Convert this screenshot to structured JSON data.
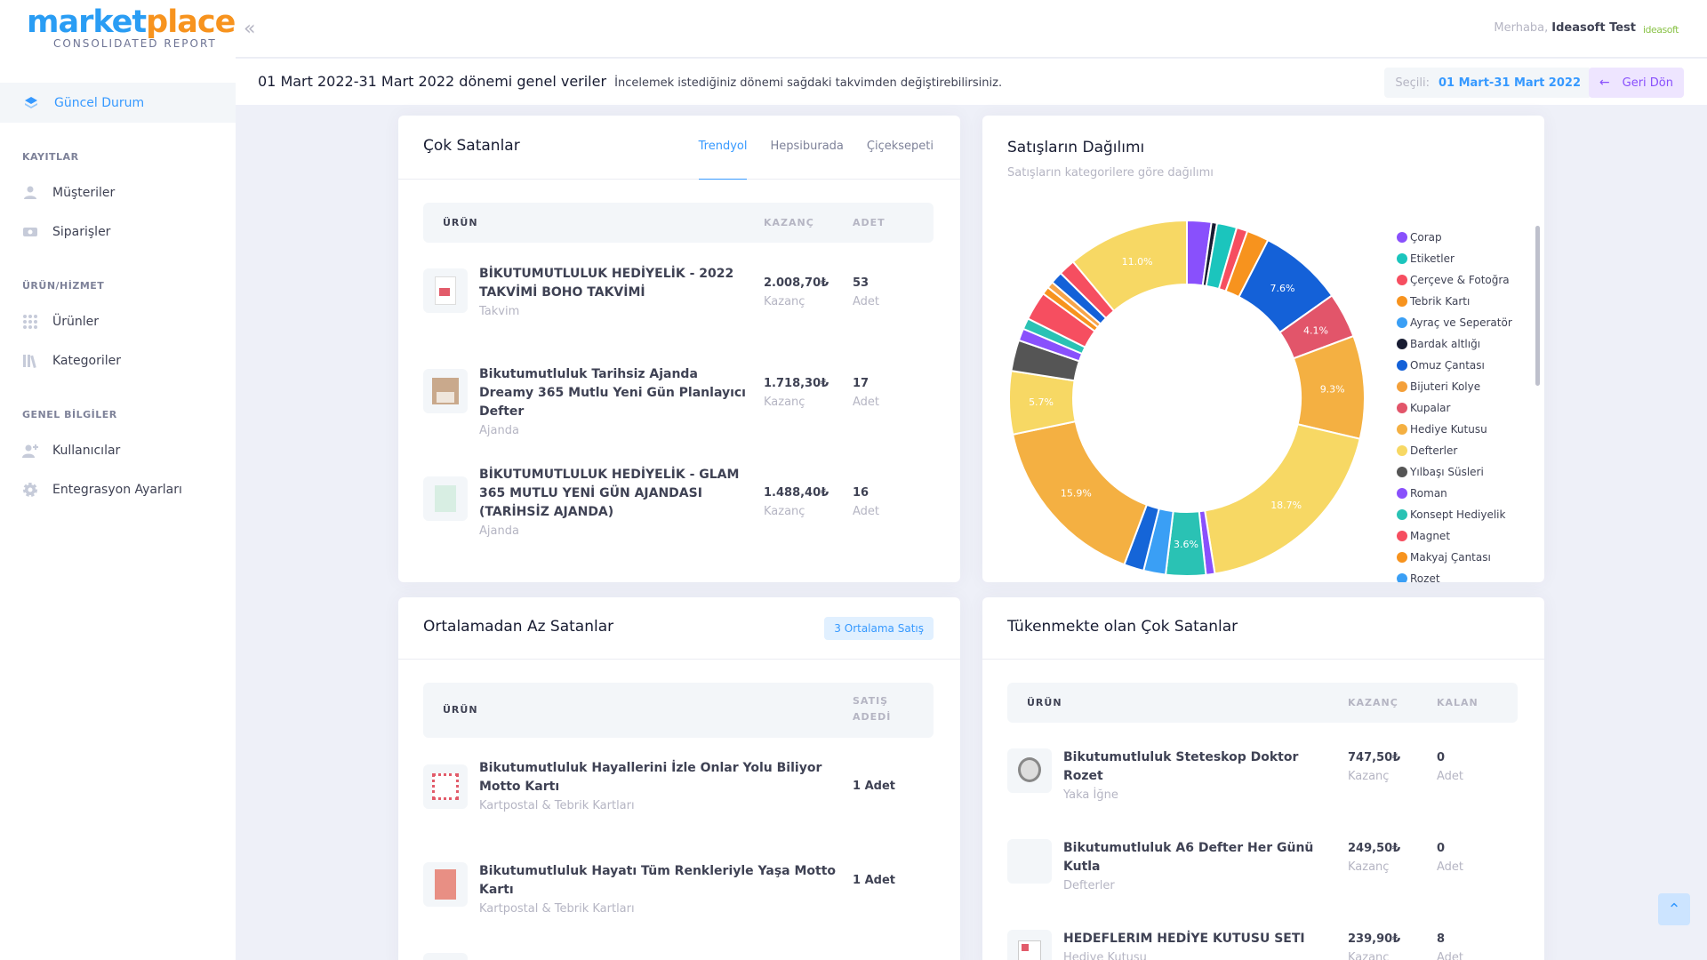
{
  "brand": {
    "part1": "market",
    "part2": "place",
    "subtitle": "CONSOLIDATED REPORT"
  },
  "sidebar": {
    "active": {
      "label": "Güncel Durum"
    },
    "sections": [
      {
        "title": "KAYITLAR",
        "items": [
          {
            "label": "Müşteriler",
            "icon": "user-icon"
          },
          {
            "label": "Siparişler",
            "icon": "money-icon"
          }
        ]
      },
      {
        "title": "ÜRÜN/HİZMET",
        "items": [
          {
            "label": "Ürünler",
            "icon": "grid-icon"
          },
          {
            "label": "Kategoriler",
            "icon": "library-icon"
          }
        ]
      },
      {
        "title": "GENEL BİLGİLER",
        "items": [
          {
            "label": "Kullanıcılar",
            "icon": "add-user-icon"
          },
          {
            "label": "Entegrasyon Ayarları",
            "icon": "gear-icon"
          }
        ]
      }
    ]
  },
  "topbar": {
    "greeting_prefix": "Merhaba,",
    "user_name": "Ideasoft Test",
    "logo_text": "ideasoft"
  },
  "subheader": {
    "title": "01 Mart 2022-31 Mart 2022 dönemi genel veriler",
    "description": "İncelemek istediğiniz dönemi sağdaki takvimden değiştirebilirsiniz.",
    "selected_label": "Seçili:",
    "selected_value": "01 Mart-31 Mart 2022",
    "back_label": "Geri Dön"
  },
  "best_sellers": {
    "title": "Çok Satanlar",
    "tabs": [
      "Trendyol",
      "Hepsiburada",
      "Çiçeksepeti"
    ],
    "active_tab": "Trendyol",
    "columns": [
      "ÜRÜN",
      "KAZANÇ",
      "ADET"
    ],
    "rows": [
      {
        "name": "BİKUTUMUTLULUK HEDİYELİK - 2022 TAKVİMİ BOHO TAKVİMİ",
        "category": "Takvim",
        "earning": "2.008,70₺",
        "earning_label": "Kazanç",
        "qty": "53",
        "qty_label": "Adet"
      },
      {
        "name": "Bikutumutluluk Tarihsiz Ajanda Dreamy 365 Mutlu Yeni Gün Planlayıcı Defter",
        "category": "Ajanda",
        "earning": "1.718,30₺",
        "earning_label": "Kazanç",
        "qty": "17",
        "qty_label": "Adet"
      },
      {
        "name": "BİKUTUMUTLULUK HEDİYELİK - GLAM 365 MUTLU YENİ GÜN AJANDASI (TARİHSİZ AJANDA)",
        "category": "Ajanda",
        "earning": "1.488,40₺",
        "earning_label": "Kazanç",
        "qty": "16",
        "qty_label": "Adet"
      }
    ]
  },
  "distribution": {
    "title": "Satışların Dağılımı",
    "subtitle": "Satışların kategorilere göre dağılımı"
  },
  "chart_data": {
    "type": "pie",
    "donut": true,
    "legend": "right",
    "categories": [
      "Çorap",
      "Etiketler",
      "Çerçeve & Fotoğra",
      "Tebrik Kartı",
      "Ayraç ve Seperatör",
      "Bardak altlığı",
      "Omuz Çantası",
      "Bijuteri Kolye",
      "Kupalar",
      "Hediye Kutusu",
      "Defterler",
      "Yılbaşı Süsleri",
      "Roman",
      "Konsept Hediyelik",
      "Magnet",
      "Makyaj Çantası",
      "Rozet"
    ],
    "slice_order": [
      "Çorap",
      "Bardak altlığı",
      "Etiketler",
      "Çerçeve & Fotoğra",
      "Tebrik Kartı",
      "Omuz Çantası",
      "Kupalar",
      "Hediye Kutusu",
      "Defterler",
      "Roman",
      "Konsept Hediyelik",
      "Ayraç ve Seperatör",
      "Omuz Çantası ",
      "Hediye Kutusu ",
      "Defterler ",
      "Yılbaşı Süsleri",
      "Roman ",
      "Konsept Hediyelik ",
      "Magnet",
      "Makyaj Çantası",
      "Rozet",
      "Omuz Çantası  ",
      "Çorap ",
      "Defterler  "
    ],
    "values": [
      2.2,
      0.5,
      1.8,
      1.0,
      2.0,
      7.6,
      4.1,
      9.3,
      18.7,
      0.8,
      3.6,
      2.0,
      1.8,
      15.9,
      5.7,
      2.8,
      1.1,
      1.0,
      2.6,
      0.7,
      0.6,
      1.1,
      1.5,
      11.0
    ],
    "slice_colors": [
      "#8950fc",
      "#181c32",
      "#1bc5bd",
      "#f64e60",
      "#f7931e",
      "#1461d8",
      "#e2556a",
      "#f4b042",
      "#f7d864",
      "#8950fc",
      "#2ac2b4",
      "#3a9ff5",
      "#1565d8",
      "#f4b042",
      "#f7d864",
      "#555555",
      "#8950fc",
      "#2ac2b4",
      "#f64e60",
      "#f7931e",
      "#f7a54a",
      "#1461d8",
      "#f64e60",
      "#f7d864"
    ],
    "labels": [
      "",
      "",
      "",
      "",
      "",
      "7.6%",
      "4.1%",
      "9.3%",
      "18.7%",
      "",
      "3.6%",
      "",
      "",
      "15.9%",
      "5.7%",
      "",
      "",
      "",
      "",
      "",
      "",
      "",
      "",
      "11.0%"
    ],
    "legend_colors": [
      "#8950fc",
      "#1bc5bd",
      "#f64e60",
      "#f7931e",
      "#3a9ff5",
      "#181c32",
      "#1461d8",
      "#f4a03a",
      "#e2556a",
      "#f4b042",
      "#f7d864",
      "#555555",
      "#8950fc",
      "#2ac2b4",
      "#f64e60",
      "#f7931e",
      "#3a9ff5"
    ]
  },
  "below_avg": {
    "title": "Ortalamadan Az Satanlar",
    "badge": "3 Ortalama Satış",
    "columns": [
      "ÜRÜN",
      "SATIŞ",
      "ADEDİ"
    ],
    "rows": [
      {
        "name": "Bikutumutluluk Hayallerini İzle Onlar Yolu Biliyor Motto Kartı",
        "category": "Kartpostal & Tebrik Kartları",
        "qty": "1 Adet"
      },
      {
        "name": "Bikutumutluluk Hayatı Tüm Renkleriyle Yaşa Motto Kartı",
        "category": "Kartpostal & Tebrik Kartları",
        "qty": "1 Adet"
      }
    ]
  },
  "running_out": {
    "title": "Tükenmekte olan Çok Satanlar",
    "columns": [
      "ÜRÜN",
      "KAZANÇ",
      "KALAN"
    ],
    "rows": [
      {
        "name": "Bikutumutluluk Steteskop Doktor Rozet",
        "category": "Yaka İğne",
        "earning": "747,50₺",
        "earning_label": "Kazanç",
        "left": "0",
        "left_label": "Adet"
      },
      {
        "name": "Bikutumutluluk A6 Defter Her Günü Kutla",
        "category": "Defterler",
        "earning": "249,50₺",
        "earning_label": "Kazanç",
        "left": "0",
        "left_label": "Adet"
      },
      {
        "name": "HEDEFLERIM HEDİYE KUTUSU SETI",
        "category": "Hediye Kutusu",
        "earning": "239,90₺",
        "earning_label": "Kazanç",
        "left": "8",
        "left_label": "Adet"
      }
    ]
  }
}
